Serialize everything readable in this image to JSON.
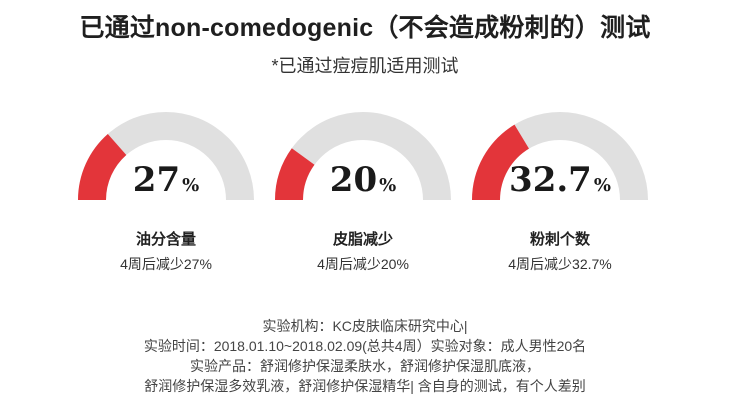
{
  "title": "已通过non-comedogenic（不会造成粉刺的）测试",
  "subtitle": "*已通过痘痘肌适用测试",
  "colors": {
    "accent": "#e3353a",
    "track": "#e0e0e0"
  },
  "chart_data": {
    "type": "gauge",
    "max": 100,
    "items": [
      {
        "value": 27,
        "value_text": "27",
        "unit": "%",
        "label": "油分含量",
        "desc": "4周后减少27%"
      },
      {
        "value": 20,
        "value_text": "20",
        "unit": "%",
        "label": "皮脂减少",
        "desc": "4周后减少20%"
      },
      {
        "value": 32.7,
        "value_text": "32.7",
        "unit": "%",
        "label": "粉刺个数",
        "desc": "4周后减少32.7%"
      }
    ]
  },
  "footer": {
    "lines": [
      "实验机构：KC皮肤临床研究中心|",
      "实验时间：2018.01.10~2018.02.09(总共4周）实验对象：成人男性20名",
      "实验产品：舒润修护保湿柔肤水，舒润修护保湿肌底液，",
      "舒润修护保湿多效乳液，舒润修护保湿精华| 含自身的测试，有个人差别"
    ]
  }
}
